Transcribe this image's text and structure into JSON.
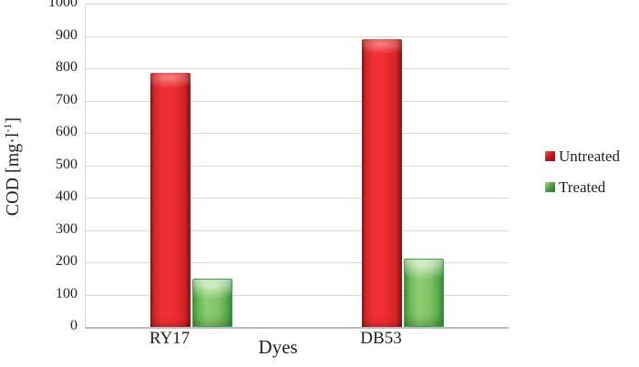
{
  "chart_data": {
    "type": "bar",
    "title": "",
    "categories": [
      "RY17",
      "DB53"
    ],
    "series": [
      {
        "name": "Untreated",
        "color": "#e32528",
        "values": [
          785,
          890
        ]
      },
      {
        "name": "Treated",
        "color": "#77c45e",
        "values": [
          150,
          210
        ]
      }
    ],
    "xlabel": "Dyes",
    "ylabel": {
      "prefix": "COD [mg·l",
      "superscript": "-1",
      "suffix": "]"
    },
    "ylim": [
      0,
      1000
    ],
    "ytick_step": 100,
    "grid": "horizontal",
    "legend_position": "right",
    "colors": {
      "gridline": "#d9d9d9",
      "axis_line": "#bdbdbd",
      "text": "#1f1f1f",
      "background": "#ffffff"
    }
  }
}
